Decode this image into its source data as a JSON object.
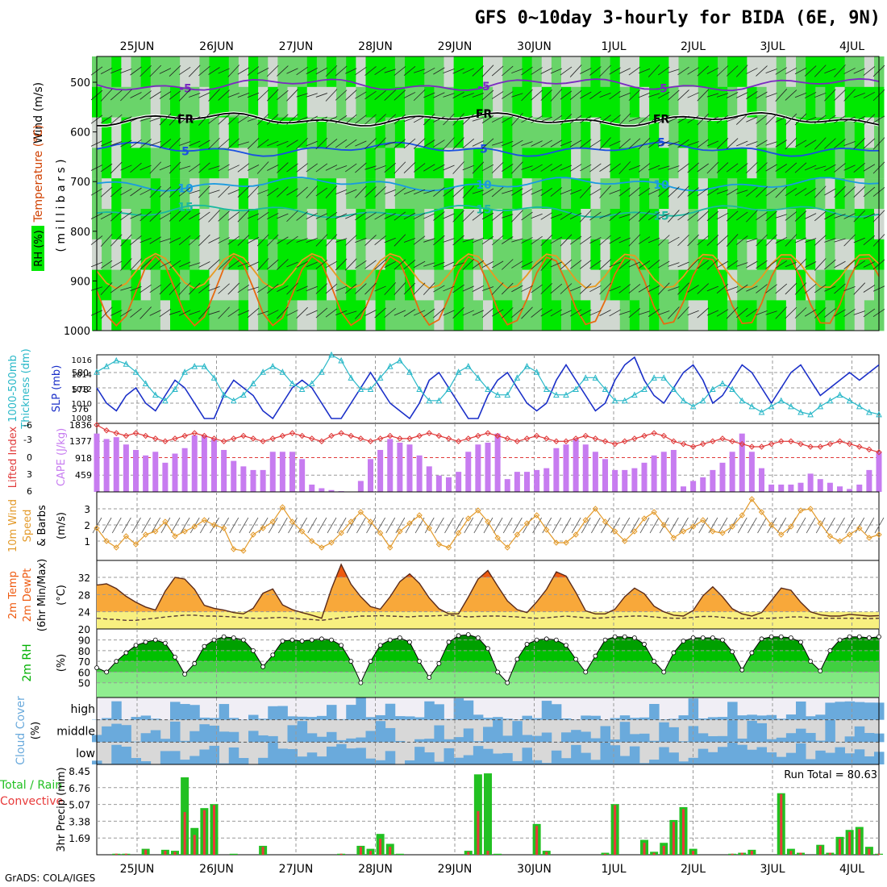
{
  "title": "GFS 0~10day 3-hourly for BIDA (6E, 9N)",
  "footer": "GrADS: COLA/IGES",
  "dates": [
    "25JUN",
    "26JUN",
    "27JUN",
    "28JUN",
    "29JUN",
    "30JUN",
    "1JUL",
    "2JUL",
    "3JUL",
    "4JUL"
  ],
  "colors": {
    "rh_light": "#d0d8d0",
    "rh_mid": "#6ad46a",
    "rh_bright": "#00e800",
    "slp": "#1a2fc8",
    "thickness": "#2ab8c8",
    "li": "#e03a3a",
    "cape": "#c77cf0",
    "wind10": "#e39a2a",
    "temp_hot": "#ee5a10",
    "temp_warm": "#f8a83a",
    "temp_mild": "#f8f080",
    "rh2m": "#00b000",
    "cloud": "#6aaadc",
    "precip_total": "#22c022",
    "precip_conv": "#e83a3a"
  },
  "panels": {
    "upper": {
      "label_wind": "Wind (m/s)",
      "label_temp": "Temperature (°C)",
      "label_rh": "RH (%)",
      "label_unit": "( m i l l i b a r s )",
      "levels": [
        "500",
        "600",
        "700",
        "800",
        "900",
        "1000"
      ],
      "isotherms": [
        {
          "label": "-5",
          "color": "#7a2ac0",
          "level": 505
        },
        {
          "label": "FR",
          "color": "#000000",
          "level": 575
        },
        {
          "label": "5",
          "color": "#1a50e0",
          "level": 635
        },
        {
          "label": "10",
          "color": "#1a9ae0",
          "level": 705
        },
        {
          "label": "15",
          "color": "#1ab8a0",
          "level": 760
        }
      ]
    },
    "thick": {
      "label_left": "1000-500mb",
      "label_left2": "Thickness (dm)",
      "label_right": "SLP (mb)",
      "yticks_left": [
        "580",
        "578",
        "576"
      ],
      "yticks_right": [
        "1016",
        "1014",
        "1012",
        "1010",
        "1008"
      ]
    },
    "cape": {
      "label_left": "Lifted Index",
      "label_right": "CAPE (J/kg)",
      "yticks_left": [
        "-6",
        "-3",
        "0",
        "3",
        "6"
      ],
      "yticks_right": [
        "1836",
        "1377",
        "918",
        "459"
      ]
    },
    "wind10": {
      "label1": "10m Wind",
      "label2": "Speed",
      "label3": "& Barbs",
      "unit": "(m/s)",
      "yticks": [
        "3",
        "2",
        "1"
      ]
    },
    "temp": {
      "label1": "2m Temp",
      "label2": "2m DewPt",
      "label3": "(6hr Min/Max)",
      "unit": "(°C)",
      "yticks": [
        "32",
        "28",
        "24",
        "20"
      ]
    },
    "rh2m": {
      "label": "2m RH",
      "unit": "(%)",
      "yticks": [
        "90",
        "80",
        "70",
        "60",
        "50"
      ]
    },
    "cloud": {
      "label": "Cloud Cover",
      "unit": "(%)",
      "rows": [
        "high",
        "middle",
        "low"
      ]
    },
    "precip": {
      "label1": "Total / Rain",
      "label2": "Convective",
      "unit": "3hr Precip (mm)",
      "yticks": [
        "8.45",
        "6.76",
        "5.07",
        "3.38",
        "1.69"
      ],
      "run_total": "Run Total = 80.63"
    }
  },
  "chart_data": {
    "type": "meteogram",
    "title": "GFS 0~10day 3-hourly for BIDA (6E, 9N)",
    "x_labels": [
      "25JUN",
      "26JUN",
      "27JUN",
      "28JUN",
      "29JUN",
      "30JUN",
      "1JUL",
      "2JUL",
      "3JUL",
      "4JUL"
    ],
    "steps": 81,
    "slp_mb": [
      1012,
      1010,
      1009,
      1011,
      1012,
      1010,
      1009,
      1011,
      1013,
      1012,
      1010,
      1008,
      1008,
      1011,
      1013,
      1012,
      1011,
      1009,
      1008,
      1010,
      1012,
      1013,
      1012,
      1010,
      1008,
      1008,
      1010,
      1012,
      1014,
      1012,
      1010,
      1009,
      1008,
      1010,
      1013,
      1014,
      1012,
      1010,
      1008,
      1008,
      1011,
      1013,
      1014,
      1012,
      1010,
      1009,
      1010,
      1013,
      1015,
      1013,
      1011,
      1009,
      1010,
      1013,
      1015,
      1016,
      1013,
      1011,
      1010,
      1012,
      1014,
      1015,
      1013,
      1010,
      1011,
      1013,
      1015,
      1014,
      1012,
      1010,
      1012,
      1014,
      1015,
      1013,
      1011,
      1012,
      1013,
      1014,
      1013,
      1014,
      1015
    ],
    "thickness_dm": [
      579.5,
      580,
      580.5,
      580.2,
      579.5,
      578.5,
      577.5,
      577,
      578,
      579.5,
      580,
      580,
      579,
      577.5,
      577,
      577.5,
      578.5,
      579.5,
      580,
      579.5,
      578.5,
      578,
      578.5,
      579.5,
      581,
      580.5,
      579,
      578,
      578,
      579,
      580,
      580.5,
      579.5,
      578,
      577,
      577,
      578,
      579.5,
      580,
      579,
      578,
      577.5,
      577.5,
      579,
      580,
      579.5,
      578,
      577.5,
      577.5,
      578,
      579,
      579,
      578,
      577,
      577,
      577.5,
      578,
      579,
      579,
      578,
      577,
      576.5,
      577,
      578,
      578.5,
      578,
      577,
      576.5,
      576,
      576.5,
      577,
      576.5,
      576,
      575.8,
      576.5,
      577,
      577.5,
      577,
      576.5,
      576,
      575.8
    ],
    "lifted_index": [
      -6,
      -5,
      -4.5,
      -4,
      -4.5,
      -4,
      -3.5,
      -3,
      -3.5,
      -4,
      -4.5,
      -4,
      -3.5,
      -3,
      -3.5,
      -4,
      -3.5,
      -3,
      -3.5,
      -4,
      -4.5,
      -4,
      -3.5,
      -3,
      -4,
      -4.5,
      -4,
      -3.5,
      -3,
      -3.5,
      -4,
      -3.5,
      -3.5,
      -4,
      -4.5,
      -4,
      -3.5,
      -3,
      -3.5,
      -4,
      -4.5,
      -4,
      -3.5,
      -3,
      -3.5,
      -4,
      -3.5,
      -3,
      -3,
      -3.5,
      -4,
      -3.5,
      -3,
      -2.5,
      -3,
      -3.5,
      -4,
      -4.5,
      -4,
      -3,
      -2.5,
      -2,
      -2.5,
      -3,
      -3.5,
      -3,
      -2.5,
      -2,
      -2,
      -2.5,
      -3,
      -3,
      -2.5,
      -2,
      -2,
      -2.5,
      -3,
      -2.5,
      -2,
      -1.5,
      -1
    ],
    "cape_jkg": [
      1600,
      1450,
      1500,
      1300,
      1150,
      1000,
      1100,
      800,
      1050,
      1200,
      1550,
      1550,
      1450,
      1150,
      850,
      700,
      600,
      600,
      1100,
      1100,
      1100,
      900,
      200,
      100,
      50,
      20,
      0,
      300,
      900,
      1150,
      1450,
      1350,
      1300,
      1000,
      700,
      450,
      400,
      550,
      1100,
      1300,
      1350,
      1600,
      350,
      550,
      550,
      600,
      650,
      1200,
      1300,
      1450,
      1300,
      1100,
      900,
      600,
      600,
      650,
      800,
      1000,
      1100,
      1150,
      150,
      300,
      400,
      600,
      800,
      1100,
      1600,
      1100,
      650,
      200,
      200,
      200,
      250,
      500,
      350,
      250,
      150,
      80,
      200,
      600,
      1100
    ],
    "wind10_speed": [
      1.8,
      1.0,
      0.6,
      1.3,
      0.8,
      1.4,
      1.6,
      2.2,
      1.3,
      1.6,
      1.9,
      2.3,
      2.0,
      1.8,
      0.5,
      0.4,
      1.4,
      1.8,
      2.2,
      3.1,
      2.2,
      1.6,
      1.0,
      0.6,
      0.9,
      1.5,
      2.2,
      2.8,
      2.2,
      1.5,
      0.6,
      1.6,
      2.1,
      2.6,
      1.8,
      0.8,
      0.6,
      1.5,
      2.4,
      2.9,
      2.2,
      1.2,
      0.6,
      1.4,
      2.1,
      2.6,
      1.7,
      0.9,
      0.9,
      1.4,
      2.3,
      3.0,
      2.2,
      1.6,
      1.0,
      1.6,
      2.4,
      2.8,
      2.0,
      1.2,
      1.6,
      1.9,
      2.3,
      1.6,
      1.5,
      1.9,
      2.6,
      3.6,
      2.8,
      2.0,
      1.4,
      1.9,
      2.9,
      3.0,
      2.1,
      1.3,
      1.0,
      1.4,
      1.8,
      1.2,
      1.4
    ],
    "temp_2m": [
      30.2,
      30.5,
      29.4,
      27.6,
      26.2,
      25.1,
      24.4,
      28.8,
      32,
      31.6,
      29.2,
      25.5,
      24.8,
      24.4,
      23.8,
      23.5,
      24.8,
      28.3,
      29.3,
      25.6,
      24.5,
      23.8,
      23.2,
      22.5,
      29.3,
      35.0,
      30.4,
      27.5,
      25.2,
      24.6,
      27.5,
      31.0,
      32.8,
      30.6,
      27.2,
      24.7,
      23.5,
      23.5,
      27.4,
      31.6,
      33.6,
      30.0,
      26.5,
      24.5,
      23.8,
      26.3,
      29.2,
      33.3,
      32.3,
      28.5,
      24.2,
      23.5,
      23.5,
      24.6,
      27.5,
      29.5,
      28.2,
      25.3,
      24.0,
      23.2,
      23.0,
      24.3,
      27.7,
      29.8,
      27.5,
      24.7,
      23.5,
      23.0,
      23.8,
      26.6,
      29.5,
      29.0,
      26.2,
      24.0,
      23.3,
      23.0,
      23.0,
      23.4,
      23.2,
      23.0,
      23.1
    ],
    "dewpt_2m": [
      22.5,
      22.3,
      22.2,
      22,
      22,
      22.3,
      22.5,
      22.8,
      23,
      23.2,
      23.2,
      23,
      23,
      22.9,
      22.8,
      22.6,
      22.5,
      22.5,
      22.6,
      22.7,
      22.5,
      22.3,
      22.2,
      22,
      22.3,
      22.6,
      22.8,
      23,
      23,
      23.1,
      23,
      22.9,
      22.8,
      23,
      23,
      23.1,
      23.2,
      23,
      22.8,
      22.9,
      23,
      23,
      22.9,
      22.8,
      22.6,
      22.5,
      22.6,
      22.8,
      23,
      22.8,
      22.6,
      22.5,
      22.6,
      22.8,
      22.9,
      23,
      23,
      22.8,
      22.6,
      22.5,
      22.5,
      22.7,
      22.9,
      22.9,
      22.7,
      22.5,
      22.4,
      22.5,
      22.5,
      22.5,
      22.6,
      22.8,
      22.8,
      22.6,
      22.5,
      22.5,
      22.5,
      22.5,
      22.5,
      22.4,
      22.5
    ],
    "rh_2m": [
      64,
      60,
      70,
      78,
      85,
      88,
      90,
      87,
      74,
      58,
      68,
      84,
      90,
      93,
      92,
      90,
      80,
      65,
      76,
      89,
      90,
      89,
      90,
      91,
      90,
      85,
      70,
      50,
      70,
      85,
      90,
      92,
      88,
      70,
      55,
      68,
      88,
      94,
      95,
      92,
      82,
      60,
      50,
      72,
      86,
      90,
      91,
      90,
      85,
      72,
      60,
      75,
      90,
      93,
      93,
      92,
      86,
      70,
      60,
      78,
      89,
      92,
      92,
      92,
      90,
      79,
      62,
      78,
      91,
      93,
      93,
      92,
      88,
      70,
      61,
      80,
      90,
      93,
      93,
      92,
      93
    ],
    "precip_total_mm": [
      0,
      0,
      0.1,
      0.1,
      0,
      0.6,
      0,
      0.5,
      0.4,
      7.8,
      2.7,
      4.7,
      5.1,
      0,
      0.1,
      0,
      0,
      0.9,
      0,
      0,
      0,
      0,
      0,
      0,
      0,
      0.1,
      0,
      0.9,
      0.6,
      2.1,
      1.1,
      0.1,
      0,
      0,
      0,
      0,
      0,
      0,
      0.4,
      8.1,
      8.2,
      0.1,
      0,
      0,
      0,
      3.1,
      0.4,
      0,
      0,
      0,
      0,
      0,
      0.2,
      5.1,
      0,
      0,
      1.5,
      0.3,
      1.2,
      3.5,
      4.8,
      0.6,
      0,
      0,
      0,
      0.1,
      0.2,
      0.5,
      0,
      0,
      6.2,
      0.6,
      0.2,
      0,
      1.0,
      0.2,
      1.8,
      2.5,
      2.8,
      0.8,
      0.1
    ],
    "precip_conv_mm": [
      0,
      0,
      0.1,
      0.1,
      0,
      0.5,
      0,
      0.4,
      0.3,
      4.3,
      2.0,
      4.5,
      5.0,
      0,
      0,
      0,
      0,
      0.8,
      0,
      0,
      0,
      0,
      0,
      0,
      0,
      0.1,
      0,
      0.8,
      0.4,
      1.6,
      0.8,
      0,
      0,
      0,
      0,
      0,
      0,
      0,
      0.3,
      4.4,
      0.4,
      0,
      0,
      0,
      0,
      2.9,
      0.3,
      0,
      0,
      0,
      0,
      0,
      0.1,
      5.0,
      0,
      0,
      1.2,
      0.2,
      0.9,
      3.3,
      4.6,
      0.4,
      0,
      0,
      0,
      0.1,
      0.2,
      0.4,
      0,
      0,
      6.1,
      0.4,
      0.2,
      0,
      0.9,
      0.2,
      1.6,
      2.3,
      2.6,
      0.6,
      0.1
    ],
    "run_total_mm": 80.63
  }
}
